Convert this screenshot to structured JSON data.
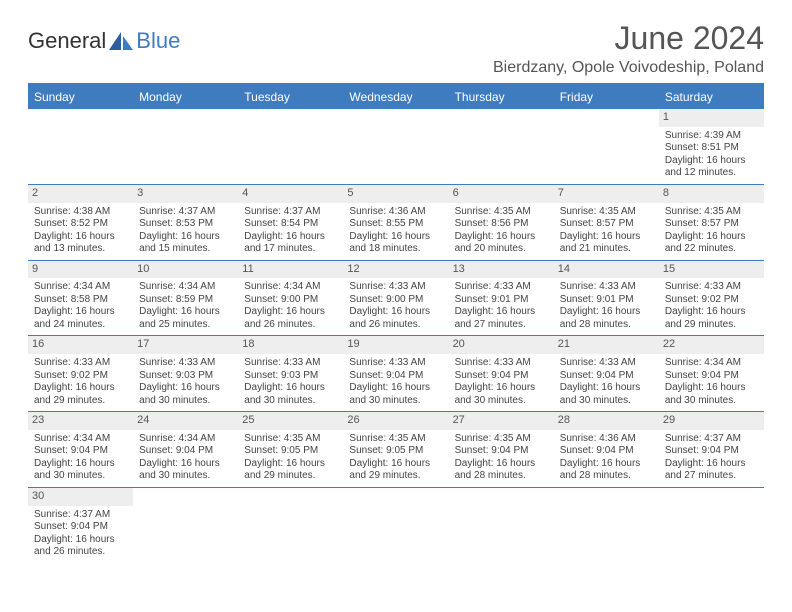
{
  "logo": {
    "text1": "General",
    "text2": "Blue"
  },
  "title": "June 2024",
  "location": "Bierdzany, Opole Voivodeship, Poland",
  "colors": {
    "header_bg": "#3f7bbf",
    "header_text": "#ffffff",
    "border": "#3f7bbf",
    "daynum_bg": "#eeeeee",
    "text": "#444444"
  },
  "day_names": [
    "Sunday",
    "Monday",
    "Tuesday",
    "Wednesday",
    "Thursday",
    "Friday",
    "Saturday"
  ],
  "weeks": [
    [
      {
        "empty": true
      },
      {
        "empty": true
      },
      {
        "empty": true
      },
      {
        "empty": true
      },
      {
        "empty": true
      },
      {
        "empty": true
      },
      {
        "num": "1",
        "sunrise": "Sunrise: 4:39 AM",
        "sunset": "Sunset: 8:51 PM",
        "d1": "Daylight: 16 hours",
        "d2": "and 12 minutes."
      }
    ],
    [
      {
        "num": "2",
        "sunrise": "Sunrise: 4:38 AM",
        "sunset": "Sunset: 8:52 PM",
        "d1": "Daylight: 16 hours",
        "d2": "and 13 minutes."
      },
      {
        "num": "3",
        "sunrise": "Sunrise: 4:37 AM",
        "sunset": "Sunset: 8:53 PM",
        "d1": "Daylight: 16 hours",
        "d2": "and 15 minutes."
      },
      {
        "num": "4",
        "sunrise": "Sunrise: 4:37 AM",
        "sunset": "Sunset: 8:54 PM",
        "d1": "Daylight: 16 hours",
        "d2": "and 17 minutes."
      },
      {
        "num": "5",
        "sunrise": "Sunrise: 4:36 AM",
        "sunset": "Sunset: 8:55 PM",
        "d1": "Daylight: 16 hours",
        "d2": "and 18 minutes."
      },
      {
        "num": "6",
        "sunrise": "Sunrise: 4:35 AM",
        "sunset": "Sunset: 8:56 PM",
        "d1": "Daylight: 16 hours",
        "d2": "and 20 minutes."
      },
      {
        "num": "7",
        "sunrise": "Sunrise: 4:35 AM",
        "sunset": "Sunset: 8:57 PM",
        "d1": "Daylight: 16 hours",
        "d2": "and 21 minutes."
      },
      {
        "num": "8",
        "sunrise": "Sunrise: 4:35 AM",
        "sunset": "Sunset: 8:57 PM",
        "d1": "Daylight: 16 hours",
        "d2": "and 22 minutes."
      }
    ],
    [
      {
        "num": "9",
        "sunrise": "Sunrise: 4:34 AM",
        "sunset": "Sunset: 8:58 PM",
        "d1": "Daylight: 16 hours",
        "d2": "and 24 minutes."
      },
      {
        "num": "10",
        "sunrise": "Sunrise: 4:34 AM",
        "sunset": "Sunset: 8:59 PM",
        "d1": "Daylight: 16 hours",
        "d2": "and 25 minutes."
      },
      {
        "num": "11",
        "sunrise": "Sunrise: 4:34 AM",
        "sunset": "Sunset: 9:00 PM",
        "d1": "Daylight: 16 hours",
        "d2": "and 26 minutes."
      },
      {
        "num": "12",
        "sunrise": "Sunrise: 4:33 AM",
        "sunset": "Sunset: 9:00 PM",
        "d1": "Daylight: 16 hours",
        "d2": "and 26 minutes."
      },
      {
        "num": "13",
        "sunrise": "Sunrise: 4:33 AM",
        "sunset": "Sunset: 9:01 PM",
        "d1": "Daylight: 16 hours",
        "d2": "and 27 minutes."
      },
      {
        "num": "14",
        "sunrise": "Sunrise: 4:33 AM",
        "sunset": "Sunset: 9:01 PM",
        "d1": "Daylight: 16 hours",
        "d2": "and 28 minutes."
      },
      {
        "num": "15",
        "sunrise": "Sunrise: 4:33 AM",
        "sunset": "Sunset: 9:02 PM",
        "d1": "Daylight: 16 hours",
        "d2": "and 29 minutes."
      }
    ],
    [
      {
        "num": "16",
        "sunrise": "Sunrise: 4:33 AM",
        "sunset": "Sunset: 9:02 PM",
        "d1": "Daylight: 16 hours",
        "d2": "and 29 minutes."
      },
      {
        "num": "17",
        "sunrise": "Sunrise: 4:33 AM",
        "sunset": "Sunset: 9:03 PM",
        "d1": "Daylight: 16 hours",
        "d2": "and 30 minutes."
      },
      {
        "num": "18",
        "sunrise": "Sunrise: 4:33 AM",
        "sunset": "Sunset: 9:03 PM",
        "d1": "Daylight: 16 hours",
        "d2": "and 30 minutes."
      },
      {
        "num": "19",
        "sunrise": "Sunrise: 4:33 AM",
        "sunset": "Sunset: 9:04 PM",
        "d1": "Daylight: 16 hours",
        "d2": "and 30 minutes."
      },
      {
        "num": "20",
        "sunrise": "Sunrise: 4:33 AM",
        "sunset": "Sunset: 9:04 PM",
        "d1": "Daylight: 16 hours",
        "d2": "and 30 minutes."
      },
      {
        "num": "21",
        "sunrise": "Sunrise: 4:33 AM",
        "sunset": "Sunset: 9:04 PM",
        "d1": "Daylight: 16 hours",
        "d2": "and 30 minutes."
      },
      {
        "num": "22",
        "sunrise": "Sunrise: 4:34 AM",
        "sunset": "Sunset: 9:04 PM",
        "d1": "Daylight: 16 hours",
        "d2": "and 30 minutes."
      }
    ],
    [
      {
        "num": "23",
        "sunrise": "Sunrise: 4:34 AM",
        "sunset": "Sunset: 9:04 PM",
        "d1": "Daylight: 16 hours",
        "d2": "and 30 minutes."
      },
      {
        "num": "24",
        "sunrise": "Sunrise: 4:34 AM",
        "sunset": "Sunset: 9:04 PM",
        "d1": "Daylight: 16 hours",
        "d2": "and 30 minutes."
      },
      {
        "num": "25",
        "sunrise": "Sunrise: 4:35 AM",
        "sunset": "Sunset: 9:05 PM",
        "d1": "Daylight: 16 hours",
        "d2": "and 29 minutes."
      },
      {
        "num": "26",
        "sunrise": "Sunrise: 4:35 AM",
        "sunset": "Sunset: 9:05 PM",
        "d1": "Daylight: 16 hours",
        "d2": "and 29 minutes."
      },
      {
        "num": "27",
        "sunrise": "Sunrise: 4:35 AM",
        "sunset": "Sunset: 9:04 PM",
        "d1": "Daylight: 16 hours",
        "d2": "and 28 minutes."
      },
      {
        "num": "28",
        "sunrise": "Sunrise: 4:36 AM",
        "sunset": "Sunset: 9:04 PM",
        "d1": "Daylight: 16 hours",
        "d2": "and 28 minutes."
      },
      {
        "num": "29",
        "sunrise": "Sunrise: 4:37 AM",
        "sunset": "Sunset: 9:04 PM",
        "d1": "Daylight: 16 hours",
        "d2": "and 27 minutes."
      }
    ],
    [
      {
        "num": "30",
        "sunrise": "Sunrise: 4:37 AM",
        "sunset": "Sunset: 9:04 PM",
        "d1": "Daylight: 16 hours",
        "d2": "and 26 minutes."
      },
      {
        "empty": true
      },
      {
        "empty": true
      },
      {
        "empty": true
      },
      {
        "empty": true
      },
      {
        "empty": true
      },
      {
        "empty": true
      }
    ]
  ]
}
